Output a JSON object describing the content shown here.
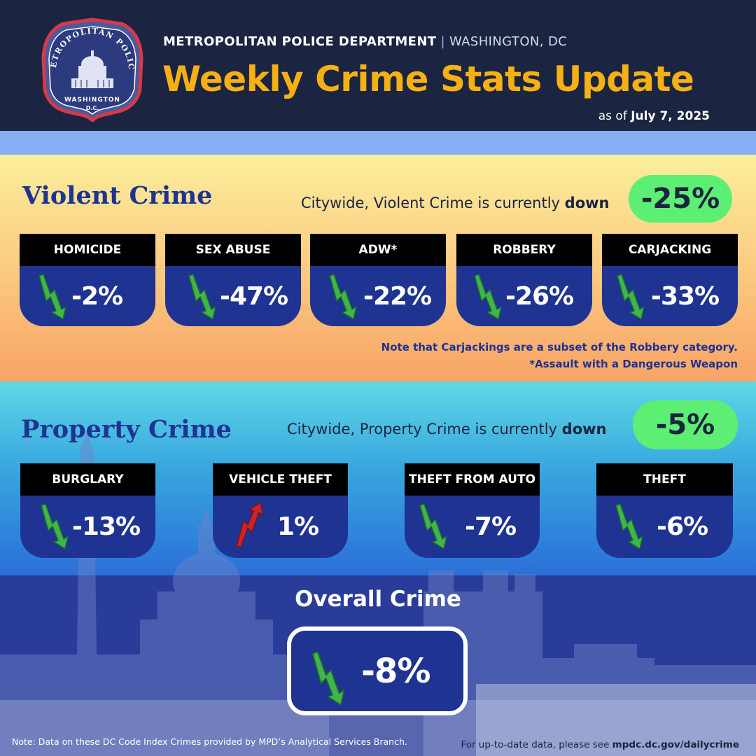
{
  "header": {
    "department": "METROPOLITAN POLICE DEPARTMENT",
    "separator": "|",
    "city": "WASHINGTON, DC",
    "title": "Weekly Crime Stats Update",
    "as_of_prefix": "as of",
    "as_of_date": "July 7, 2025",
    "badge": {
      "top_text": "METROPOLITAN POLICE",
      "bottom_text": "WASHINGTON",
      "sub_text": "D.C."
    }
  },
  "violent": {
    "title": "Violent Crime",
    "statement_prefix": "Citywide, Violent Crime is currently",
    "statement_bold": "down",
    "total": "-25%",
    "categories": [
      {
        "label": "HOMICIDE",
        "value": "-2%",
        "trend": "down"
      },
      {
        "label": "SEX ABUSE",
        "value": "-47%",
        "trend": "down"
      },
      {
        "label": "ADW*",
        "value": "-22%",
        "trend": "down"
      },
      {
        "label": "ROBBERY",
        "value": "-26%",
        "trend": "down"
      },
      {
        "label": "CARJACKING",
        "value": "-33%",
        "trend": "down"
      }
    ],
    "note_1": "Note that Carjackings are a subset of the Robbery category.",
    "note_2": "*Assault with a Dangerous Weapon"
  },
  "property": {
    "title": "Property Crime",
    "statement_prefix": "Citywide, Property Crime is currently",
    "statement_bold": "down",
    "total": "-5%",
    "categories": [
      {
        "label": "BURGLARY",
        "value": "-13%",
        "trend": "down"
      },
      {
        "label": "VEHICLE THEFT",
        "value": "1%",
        "trend": "up"
      },
      {
        "label": "THEFT FROM AUTO",
        "value": "-7%",
        "trend": "down"
      },
      {
        "label": "THEFT",
        "value": "-6%",
        "trend": "down"
      }
    ]
  },
  "overall": {
    "title": "Overall Crime",
    "value": "-8%",
    "trend": "down"
  },
  "footer": {
    "note": "Note: Data on these DC Code Index Crimes provided by MPD’s Analytical Services Branch.",
    "link_prefix": "For up-to-date data, please see",
    "link": "mpdc.dc.gov/dailycrime"
  },
  "colors": {
    "navy": "#1b2440",
    "accent_gold": "#f5b114",
    "card_blue": "#1f3393",
    "pill_green": "#5cef73",
    "arrow_down_green": "#3fb54a",
    "arrow_up_red": "#c8242b"
  },
  "icons": {
    "down_trend": "zigzag-down-arrow-icon",
    "up_trend": "zigzag-up-arrow-icon"
  }
}
